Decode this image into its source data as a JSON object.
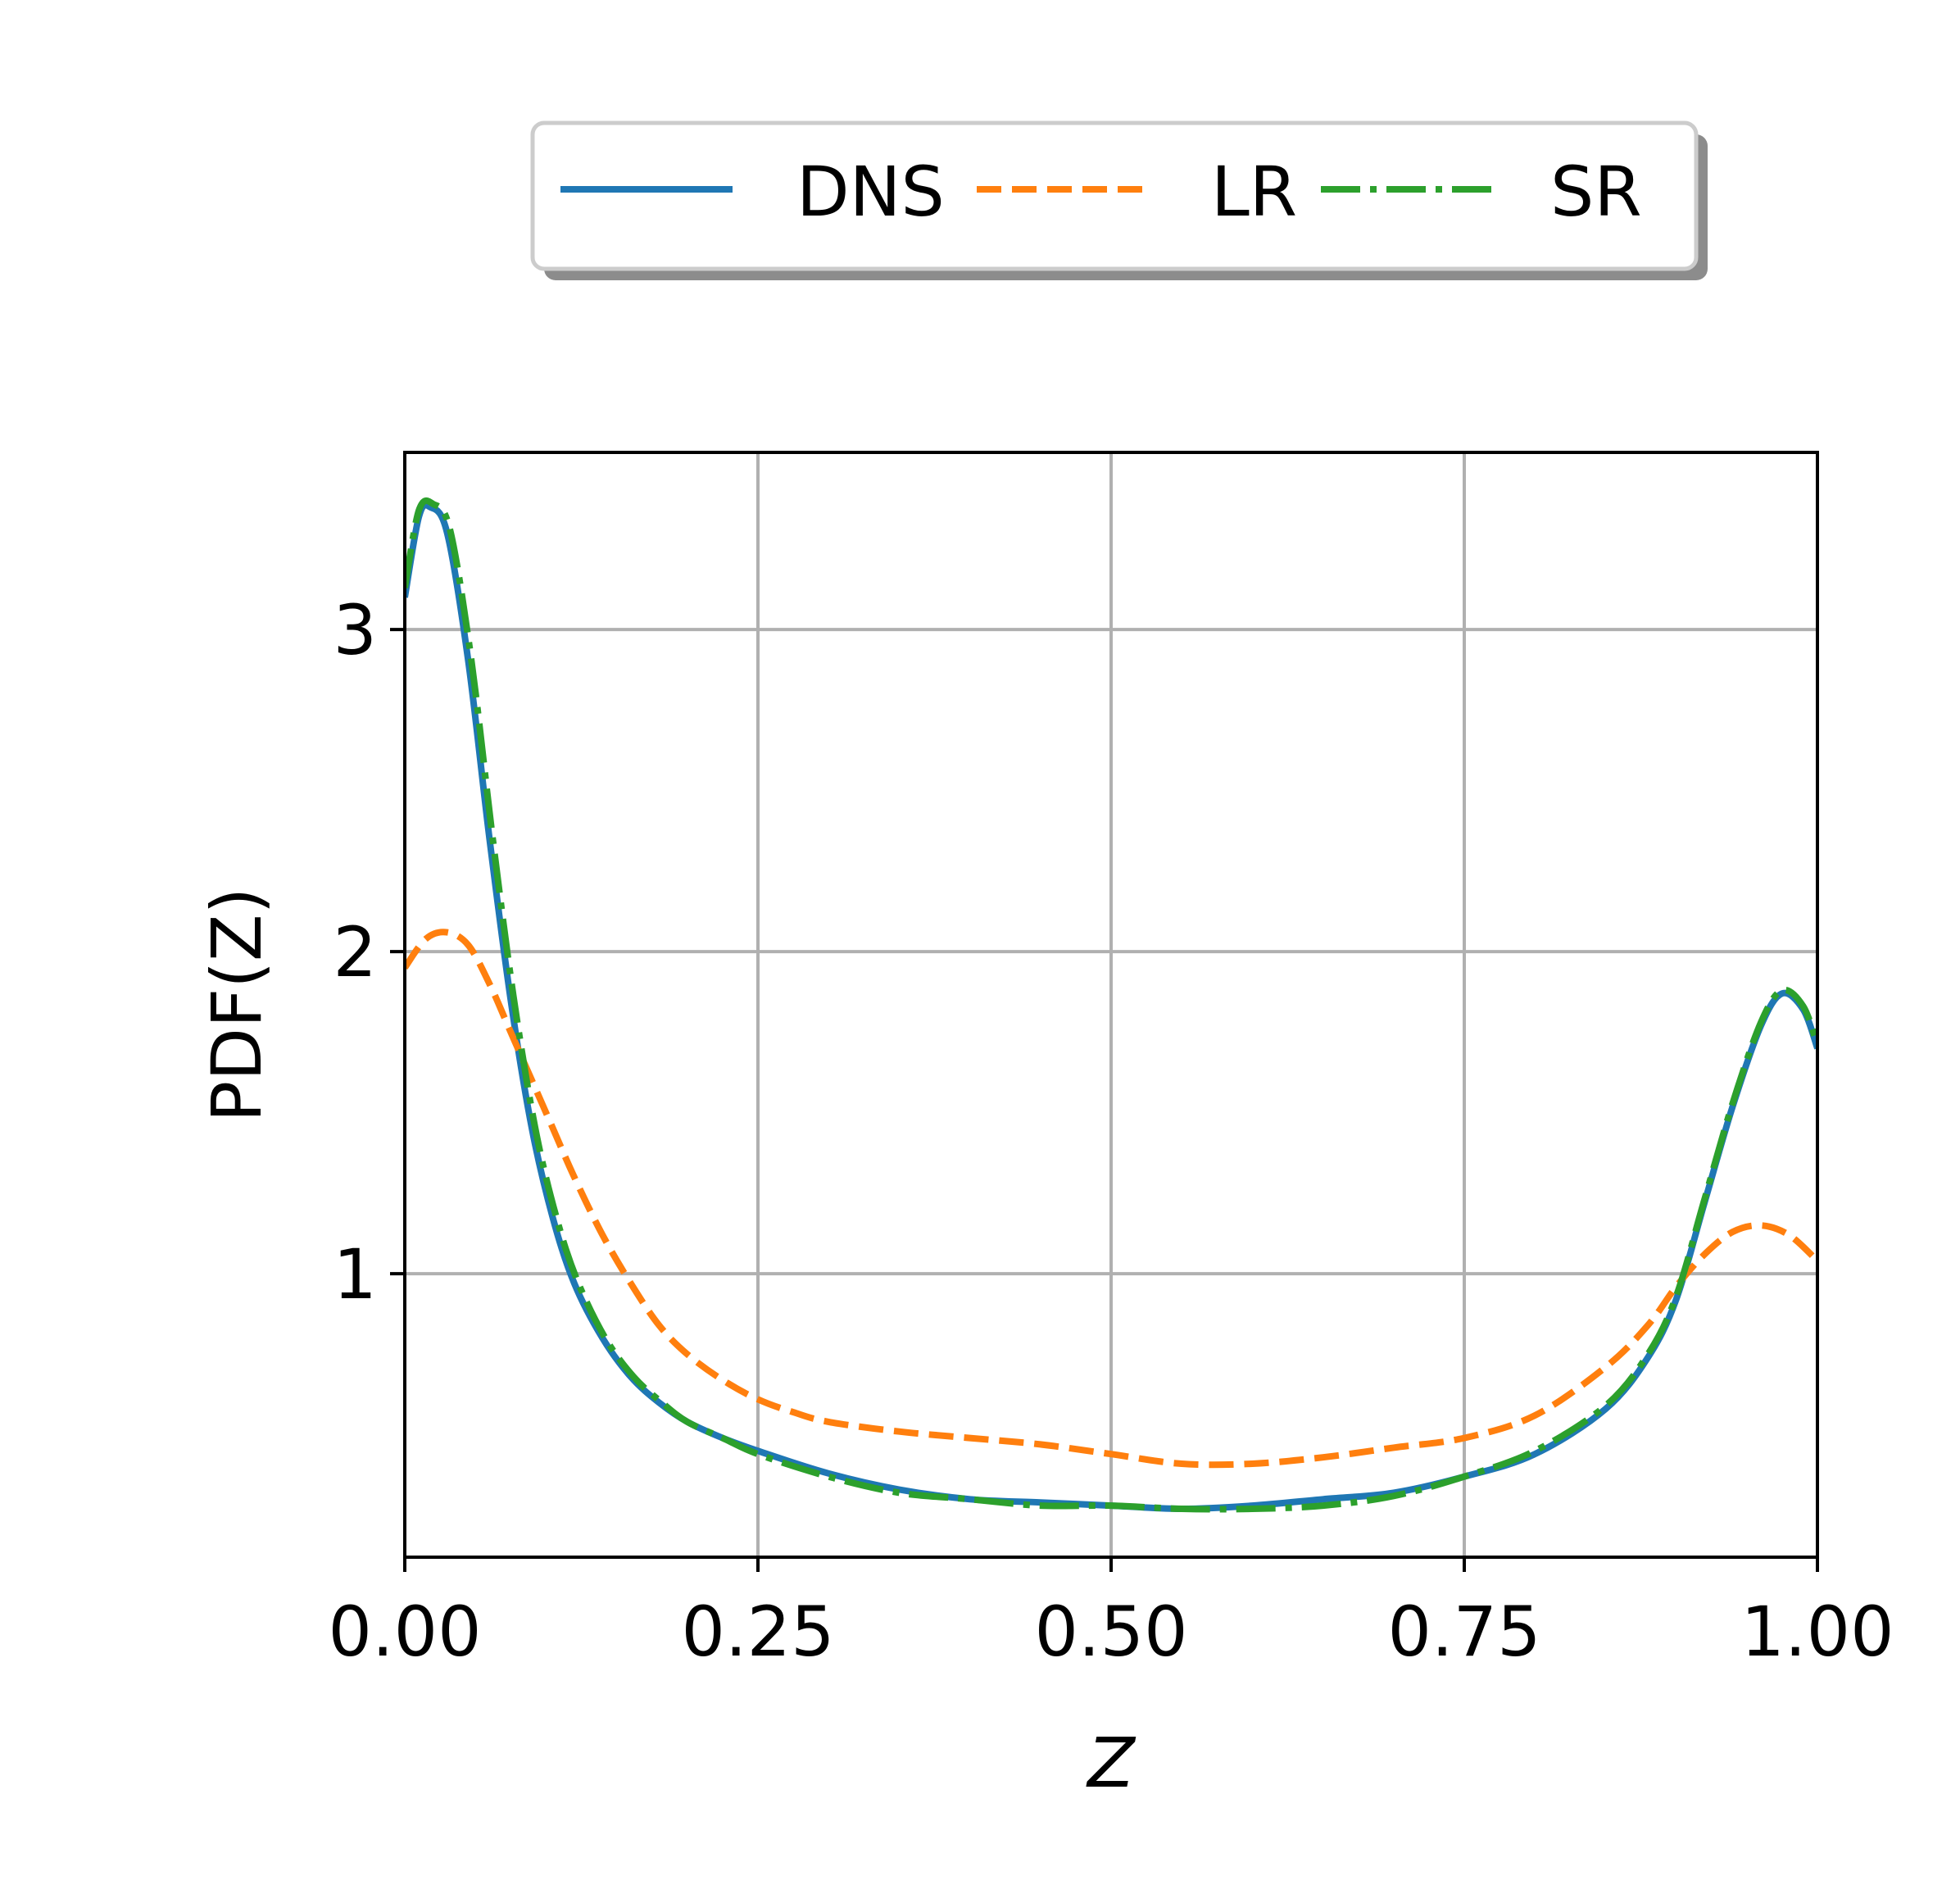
{
  "chart_data": {
    "type": "line",
    "xlabel": "Z",
    "ylabel": "PDF(Z)",
    "xlim": [
      0.0,
      1.0
    ],
    "ylim": [
      0.12,
      3.55
    ],
    "xticks": [
      "0.00",
      "0.25",
      "0.50",
      "0.75",
      "1.00"
    ],
    "yticks": [
      "1",
      "2",
      "3"
    ],
    "grid": true,
    "legend_position": "top-center",
    "series": [
      {
        "name": "DNS",
        "color": "#1f77b4",
        "style": "solid",
        "x": [
          0.0,
          0.01,
          0.018,
          0.03,
          0.045,
          0.06,
          0.075,
          0.09,
          0.105,
          0.12,
          0.14,
          0.16,
          0.18,
          0.2,
          0.225,
          0.25,
          0.3,
          0.35,
          0.4,
          0.45,
          0.5,
          0.55,
          0.6,
          0.65,
          0.7,
          0.75,
          0.8,
          0.85,
          0.88,
          0.9,
          0.92,
          0.94,
          0.96,
          0.975,
          0.99,
          1.0
        ],
        "y": [
          3.1,
          3.35,
          3.38,
          3.3,
          2.9,
          2.35,
          1.85,
          1.45,
          1.17,
          0.97,
          0.8,
          0.68,
          0.6,
          0.54,
          0.49,
          0.45,
          0.38,
          0.33,
          0.3,
          0.29,
          0.28,
          0.27,
          0.28,
          0.3,
          0.32,
          0.37,
          0.44,
          0.58,
          0.74,
          0.92,
          1.22,
          1.52,
          1.77,
          1.87,
          1.82,
          1.7
        ]
      },
      {
        "name": "LR",
        "color": "#ff7f0e",
        "style": "dashed",
        "x": [
          0.0,
          0.015,
          0.03,
          0.045,
          0.06,
          0.075,
          0.09,
          0.105,
          0.12,
          0.14,
          0.16,
          0.18,
          0.2,
          0.225,
          0.25,
          0.275,
          0.3,
          0.35,
          0.4,
          0.45,
          0.5,
          0.55,
          0.6,
          0.65,
          0.7,
          0.75,
          0.8,
          0.85,
          0.88,
          0.9,
          0.92,
          0.94,
          0.96,
          0.98,
          1.0
        ],
        "y": [
          1.95,
          2.04,
          2.06,
          2.02,
          1.9,
          1.75,
          1.6,
          1.45,
          1.3,
          1.12,
          0.97,
          0.84,
          0.75,
          0.67,
          0.61,
          0.57,
          0.54,
          0.51,
          0.49,
          0.47,
          0.44,
          0.41,
          0.41,
          0.43,
          0.46,
          0.49,
          0.56,
          0.71,
          0.84,
          0.96,
          1.06,
          1.13,
          1.15,
          1.12,
          1.04
        ]
      },
      {
        "name": "SR",
        "color": "#2ca02c",
        "style": "dashdot",
        "x": [
          0.0,
          0.01,
          0.02,
          0.032,
          0.047,
          0.062,
          0.077,
          0.092,
          0.107,
          0.122,
          0.142,
          0.162,
          0.182,
          0.2,
          0.225,
          0.25,
          0.3,
          0.35,
          0.4,
          0.45,
          0.5,
          0.55,
          0.6,
          0.65,
          0.7,
          0.75,
          0.8,
          0.85,
          0.88,
          0.9,
          0.92,
          0.94,
          0.96,
          0.975,
          0.99,
          1.0
        ],
        "y": [
          3.13,
          3.37,
          3.39,
          3.31,
          2.91,
          2.36,
          1.86,
          1.46,
          1.18,
          0.98,
          0.8,
          0.68,
          0.6,
          0.54,
          0.49,
          0.44,
          0.37,
          0.32,
          0.3,
          0.28,
          0.28,
          0.27,
          0.27,
          0.28,
          0.31,
          0.37,
          0.45,
          0.59,
          0.75,
          0.93,
          1.23,
          1.53,
          1.78,
          1.88,
          1.83,
          1.71
        ]
      }
    ]
  }
}
